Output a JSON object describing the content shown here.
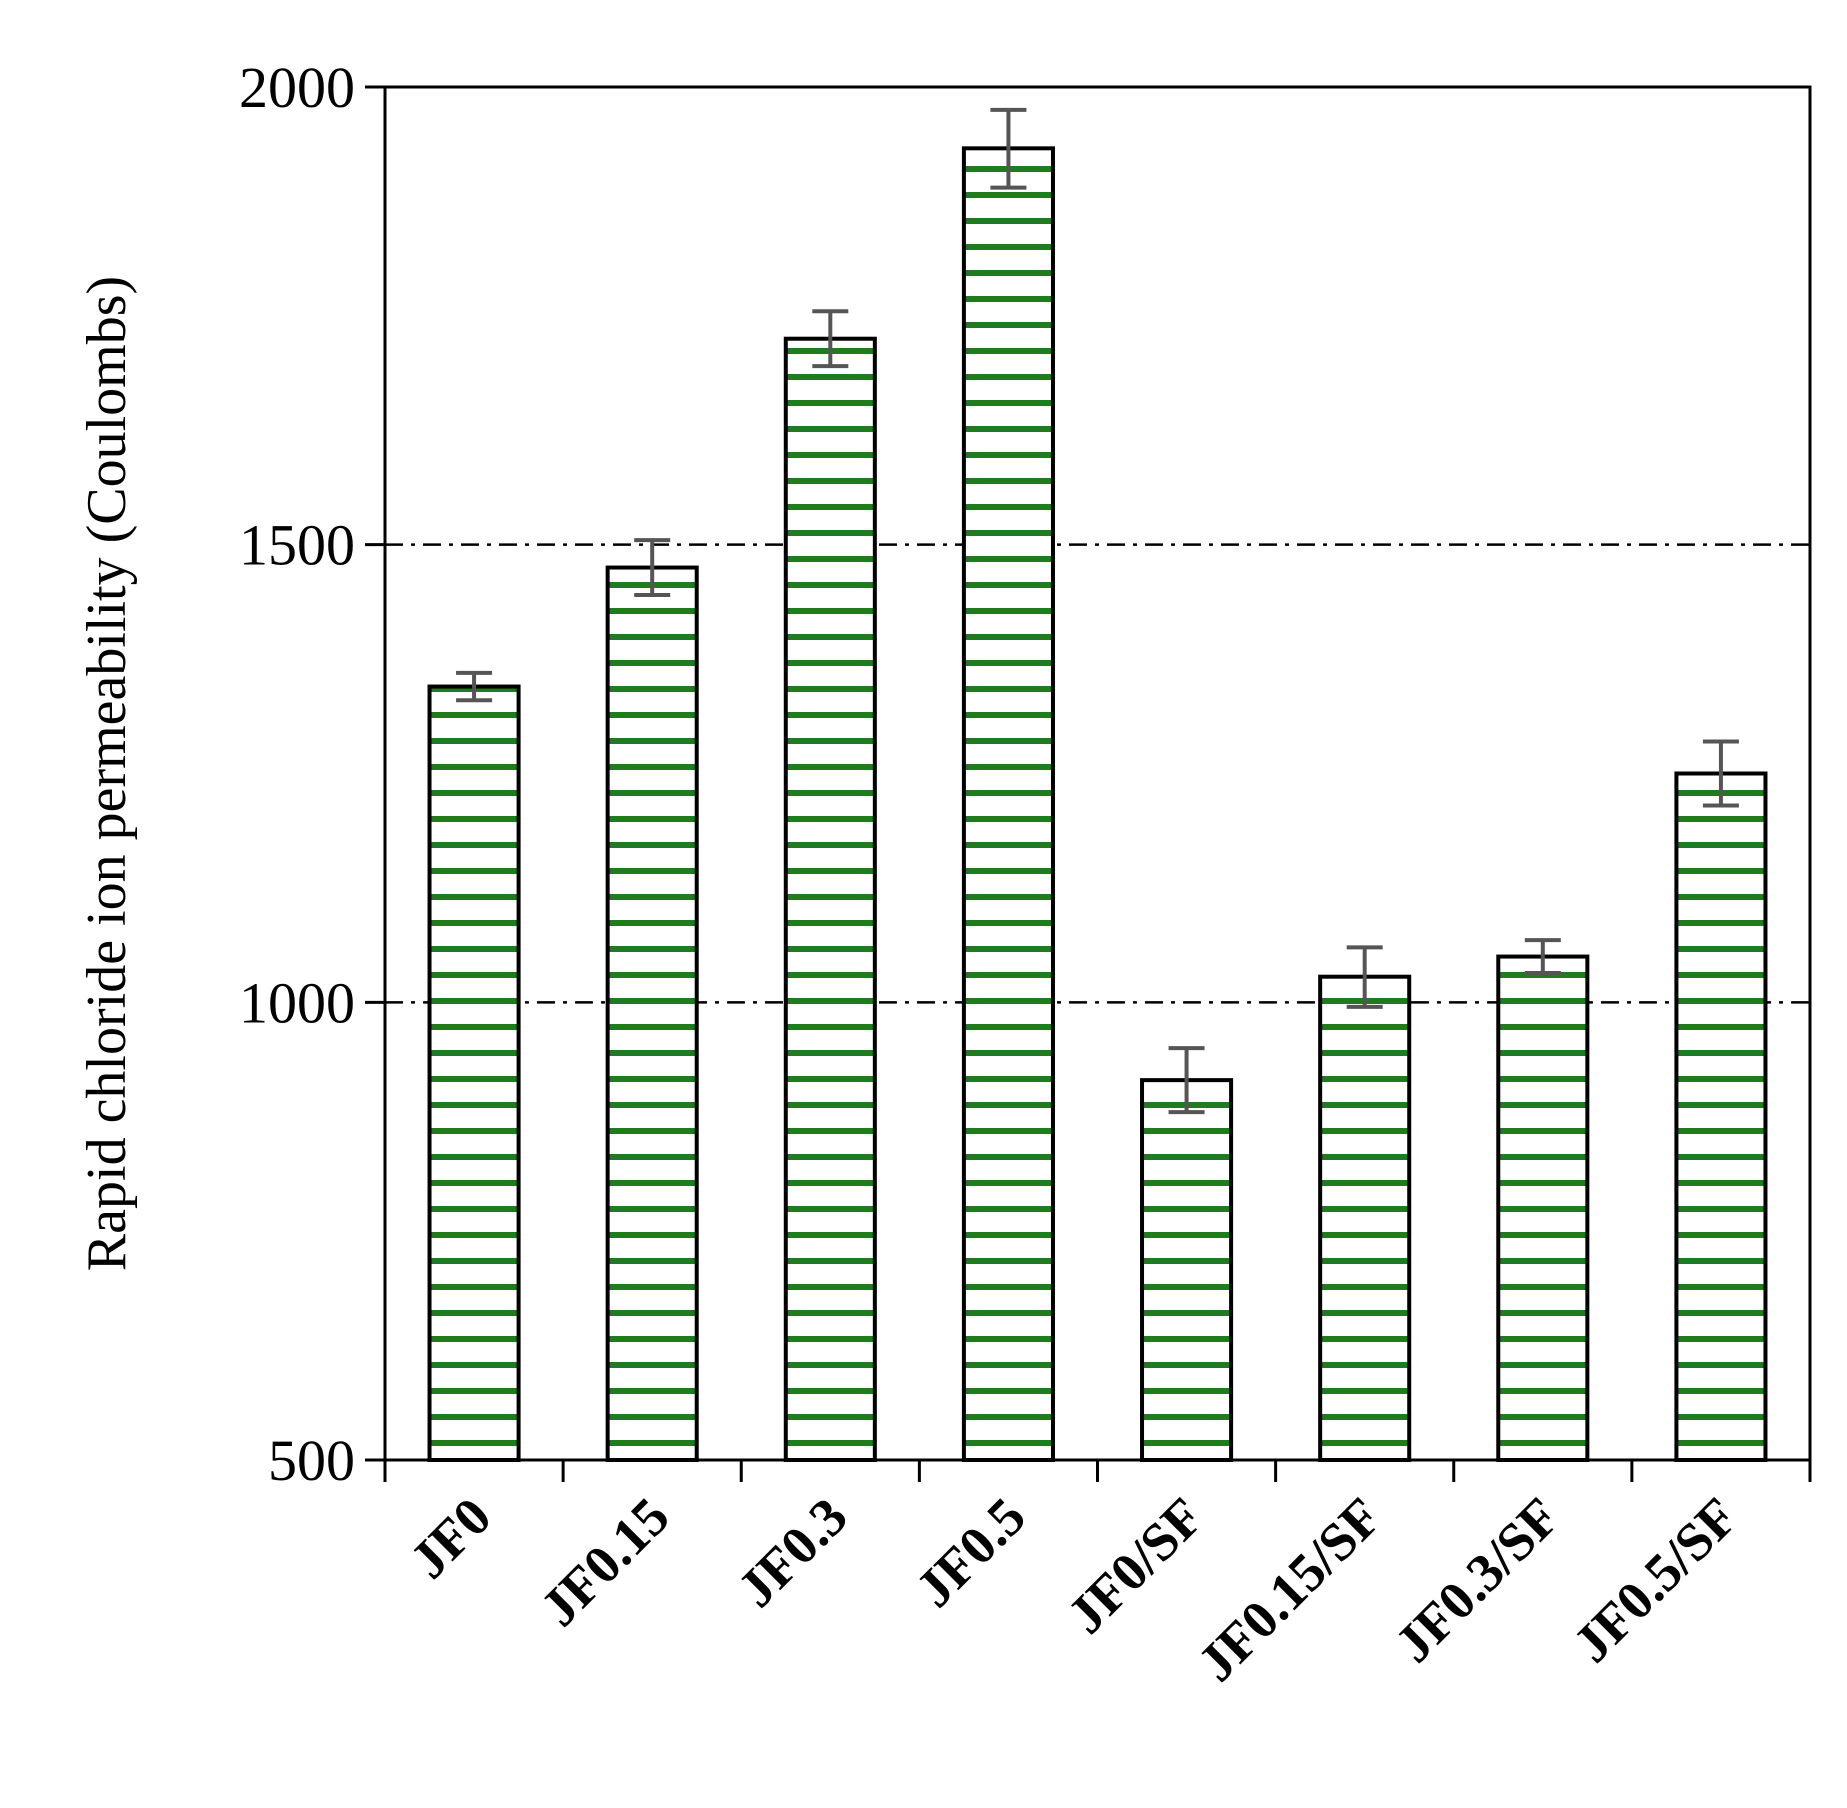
{
  "chart_data": {
    "type": "bar",
    "title": "",
    "xlabel": "",
    "ylabel": "Rapid chloride ion permeability (Coulombs)",
    "ylim": [
      500,
      2000
    ],
    "yticks": [
      500,
      1000,
      1500,
      2000
    ],
    "reference_lines": [
      1000,
      1500
    ],
    "categories": [
      "JF0",
      "JF0.15",
      "JF0.3",
      "JF0.5",
      "JF0/SF",
      "JF0.15/SF",
      "JF0.3/SF",
      "JF0.5/SF"
    ],
    "values": [
      1345,
      1475,
      1725,
      1933,
      915,
      1028,
      1050,
      1250
    ],
    "error_low": [
      1330,
      1445,
      1695,
      1890,
      880,
      995,
      1032,
      1215
    ],
    "error_high": [
      1360,
      1505,
      1755,
      1975,
      950,
      1060,
      1068,
      1285
    ],
    "grid": false,
    "colors": {
      "bar_stripe": "#1e7b1e",
      "bar_fill": "#ffffff",
      "bar_edge": "#000000",
      "error_bar": "#555555",
      "reference_line": "#000000"
    }
  }
}
